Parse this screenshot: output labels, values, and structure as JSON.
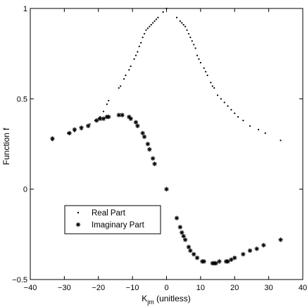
{
  "chart_data": {
    "type": "scatter",
    "title": "",
    "xlabel_main": "K",
    "xlabel_sub": "jm",
    "xlabel_suffix": " (unitless)",
    "ylabel": "Function f",
    "xlim": [
      -40,
      40
    ],
    "ylim": [
      -0.5,
      1
    ],
    "xticks": [
      -40,
      -30,
      -20,
      -10,
      0,
      10,
      20,
      30,
      40
    ],
    "yticks": [
      -0.5,
      0,
      0.5,
      1
    ],
    "ytick_labels": [
      "−0.5",
      "0",
      "0.5",
      "1"
    ],
    "xtick_labels": [
      "−40",
      "−30",
      "−20",
      "−10",
      "0",
      "10",
      "20",
      "30",
      "40"
    ],
    "grid": false,
    "legend_position": "lower-left",
    "series": [
      {
        "name": "Real Part",
        "marker": "dot",
        "color": "#000000",
        "points": [
          [
            -33.5,
            0.27
          ],
          [
            -29,
            0.31
          ],
          [
            -27,
            0.32
          ],
          [
            -25,
            0.33
          ],
          [
            -22.5,
            0.36
          ],
          [
            -21,
            0.38
          ],
          [
            -20,
            0.39
          ],
          [
            -19.5,
            0.4
          ],
          [
            -18.5,
            0.43
          ],
          [
            -17.5,
            0.47
          ],
          [
            -17,
            0.49
          ],
          [
            -14,
            0.56
          ],
          [
            -13.5,
            0.57
          ],
          [
            -12.5,
            0.61
          ],
          [
            -12,
            0.63
          ],
          [
            -11,
            0.66
          ],
          [
            -10.5,
            0.68
          ],
          [
            -9.5,
            0.72
          ],
          [
            -9,
            0.74
          ],
          [
            -8.5,
            0.76
          ],
          [
            -8,
            0.79
          ],
          [
            -7.5,
            0.81
          ],
          [
            -7,
            0.84
          ],
          [
            -6.5,
            0.86
          ],
          [
            -6,
            0.88
          ],
          [
            -5.5,
            0.89
          ],
          [
            -5,
            0.9
          ],
          [
            -4.5,
            0.91
          ],
          [
            -4,
            0.92
          ],
          [
            -3.5,
            0.93
          ],
          [
            -3,
            0.94
          ],
          [
            -2.5,
            0.95
          ],
          [
            -1,
            0.98
          ],
          [
            0,
            1.0
          ],
          [
            3,
            0.95
          ],
          [
            4,
            0.93
          ],
          [
            4.5,
            0.92
          ],
          [
            5,
            0.91
          ],
          [
            5.5,
            0.9
          ],
          [
            6,
            0.88
          ],
          [
            6.5,
            0.86
          ],
          [
            7,
            0.84
          ],
          [
            7.5,
            0.82
          ],
          [
            8,
            0.8
          ],
          [
            8.5,
            0.78
          ],
          [
            9,
            0.74
          ],
          [
            9.5,
            0.72
          ],
          [
            10,
            0.7
          ],
          [
            11,
            0.67
          ],
          [
            11.5,
            0.65
          ],
          [
            12,
            0.63
          ],
          [
            13,
            0.59
          ],
          [
            13.5,
            0.57
          ],
          [
            14,
            0.56
          ],
          [
            15,
            0.52
          ],
          [
            16,
            0.5
          ],
          [
            17,
            0.48
          ],
          [
            18,
            0.46
          ],
          [
            19,
            0.44
          ],
          [
            20,
            0.42
          ],
          [
            21,
            0.4
          ],
          [
            22.5,
            0.38
          ],
          [
            24.5,
            0.35
          ],
          [
            27,
            0.33
          ],
          [
            29,
            0.31
          ],
          [
            33.5,
            0.27
          ]
        ]
      },
      {
        "name": "Imaginary Part",
        "marker": "asterisk",
        "color": "#000000",
        "points": [
          [
            -33.5,
            0.28
          ],
          [
            -28.5,
            0.31
          ],
          [
            -27,
            0.33
          ],
          [
            -25,
            0.34
          ],
          [
            -23,
            0.35
          ],
          [
            -20.5,
            0.38
          ],
          [
            -19.5,
            0.39
          ],
          [
            -18.5,
            0.39
          ],
          [
            -17.5,
            0.4
          ],
          [
            -17,
            0.4
          ],
          [
            -14,
            0.41
          ],
          [
            -13,
            0.41
          ],
          [
            -11,
            0.4
          ],
          [
            -10.5,
            0.39
          ],
          [
            -9,
            0.37
          ],
          [
            -8.5,
            0.35
          ],
          [
            -7,
            0.31
          ],
          [
            -6.5,
            0.29
          ],
          [
            -5.5,
            0.25
          ],
          [
            -5,
            0.22
          ],
          [
            -4,
            0.17
          ],
          [
            -3.5,
            0.14
          ],
          [
            0,
            0.0
          ],
          [
            3,
            -0.16
          ],
          [
            4,
            -0.21
          ],
          [
            4.5,
            -0.24
          ],
          [
            5,
            -0.26
          ],
          [
            5.5,
            -0.28
          ],
          [
            6.5,
            -0.32
          ],
          [
            7,
            -0.34
          ],
          [
            8,
            -0.36
          ],
          [
            9,
            -0.38
          ],
          [
            10.5,
            -0.4
          ],
          [
            11,
            -0.4
          ],
          [
            13.5,
            -0.41
          ],
          [
            14,
            -0.41
          ],
          [
            14.5,
            -0.41
          ],
          [
            15.5,
            -0.4
          ],
          [
            17.5,
            -0.4
          ],
          [
            18,
            -0.4
          ],
          [
            19,
            -0.39
          ],
          [
            20,
            -0.38
          ],
          [
            22.5,
            -0.36
          ],
          [
            24.5,
            -0.34
          ],
          [
            26.5,
            -0.33
          ],
          [
            28.5,
            -0.31
          ],
          [
            33.5,
            -0.28
          ]
        ]
      }
    ]
  }
}
